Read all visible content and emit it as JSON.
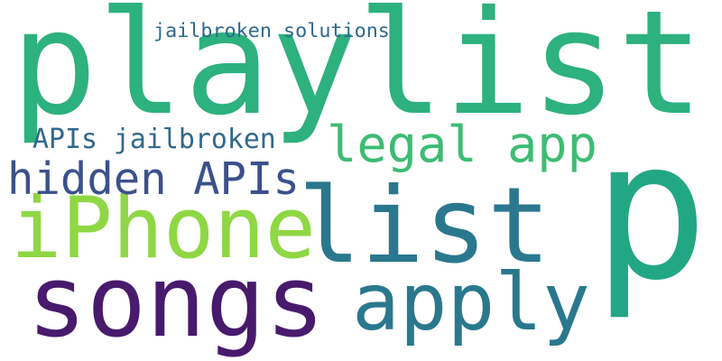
{
  "word_cloud": {
    "words": [
      {
        "text": "playlist",
        "color": "#2db17e"
      },
      {
        "text": "p",
        "color": "#22a785"
      },
      {
        "text": "list",
        "color": "#2a788e"
      },
      {
        "text": "songs",
        "color": "#481a6c"
      },
      {
        "text": "iPhone",
        "color": "#8fd744"
      },
      {
        "text": "apply",
        "color": "#2a788e"
      },
      {
        "text": "hidden APIs",
        "color": "#3b518b"
      },
      {
        "text": "legal app",
        "color": "#3dbc74"
      },
      {
        "text": "APIs jailbroken",
        "color": "#30688e"
      },
      {
        "text": "jailbroken solutions",
        "color": "#30688e"
      }
    ]
  }
}
